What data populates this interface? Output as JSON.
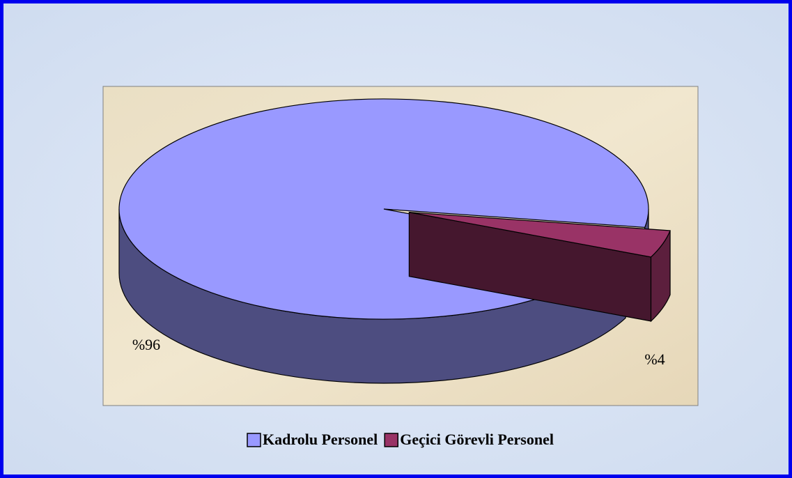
{
  "chart_data": {
    "type": "pie",
    "categories": [
      "Kadrolu Personel",
      "Geçici Görevli Personel"
    ],
    "values": [
      96,
      4
    ],
    "value_labels": [
      "%96",
      "%4"
    ],
    "colors": [
      "#9999ff",
      "#993366"
    ],
    "legend": "bottom"
  }
}
